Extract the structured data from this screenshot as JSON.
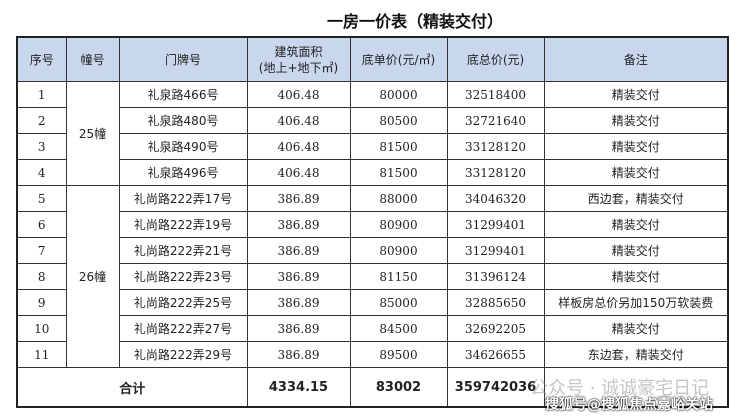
{
  "title": "一房一价表（精装交付）",
  "headers": [
    "序号",
    "幢号",
    "门牌号",
    "建筑面积\n(地上+地下㎡)",
    "底单价(元/㎡)",
    "底总价(元)",
    "备注"
  ],
  "buildings": [
    "25幢",
    "26幢"
  ],
  "rows": [
    {
      "no": "1",
      "addr": "礼泉路466号",
      "area": "406.48",
      "unit": "80000",
      "total": "32518400",
      "note": "精装交付"
    },
    {
      "no": "2",
      "addr": "礼泉路480号",
      "area": "406.48",
      "unit": "80500",
      "total": "32721640",
      "note": "精装交付"
    },
    {
      "no": "3",
      "addr": "礼泉路490号",
      "area": "406.48",
      "unit": "81500",
      "total": "33128120",
      "note": "精装交付"
    },
    {
      "no": "4",
      "addr": "礼泉路496号",
      "area": "406.48",
      "unit": "81500",
      "total": "33128120",
      "note": "精装交付"
    },
    {
      "no": "5",
      "addr": "礼尚路222弄17号",
      "area": "386.89",
      "unit": "88000",
      "total": "34046320",
      "note": "西边套，精装交付"
    },
    {
      "no": "6",
      "addr": "礼尚路222弄19号",
      "area": "386.89",
      "unit": "80900",
      "total": "31299401",
      "note": "精装交付"
    },
    {
      "no": "7",
      "addr": "礼尚路222弄21号",
      "area": "386.89",
      "unit": "80900",
      "total": "31299401",
      "note": "精装交付"
    },
    {
      "no": "8",
      "addr": "礼尚路222弄23号",
      "area": "386.89",
      "unit": "81150",
      "total": "31396124",
      "note": "精装交付"
    },
    {
      "no": "9",
      "addr": "礼尚路222弄25号",
      "area": "386.89",
      "unit": "85000",
      "total": "32885650",
      "note": "样板房总价另加150万软装费"
    },
    {
      "no": "10",
      "addr": "礼尚路222弄27号",
      "area": "386.89",
      "unit": "84500",
      "total": "32692205",
      "note": "精装交付"
    },
    {
      "no": "11",
      "addr": "礼尚路222弄29号",
      "area": "386.89",
      "unit": "89500",
      "total": "34626655",
      "note": "东边套，精装交付"
    }
  ],
  "total": {
    "label": "合计",
    "area": "4334.15",
    "unit": "83002",
    "total": "359742036"
  },
  "watermarks": [
    "公众号 · 诚诚豪宅日记",
    "搜狐号@搜狐焦点嘉峪关站"
  ]
}
